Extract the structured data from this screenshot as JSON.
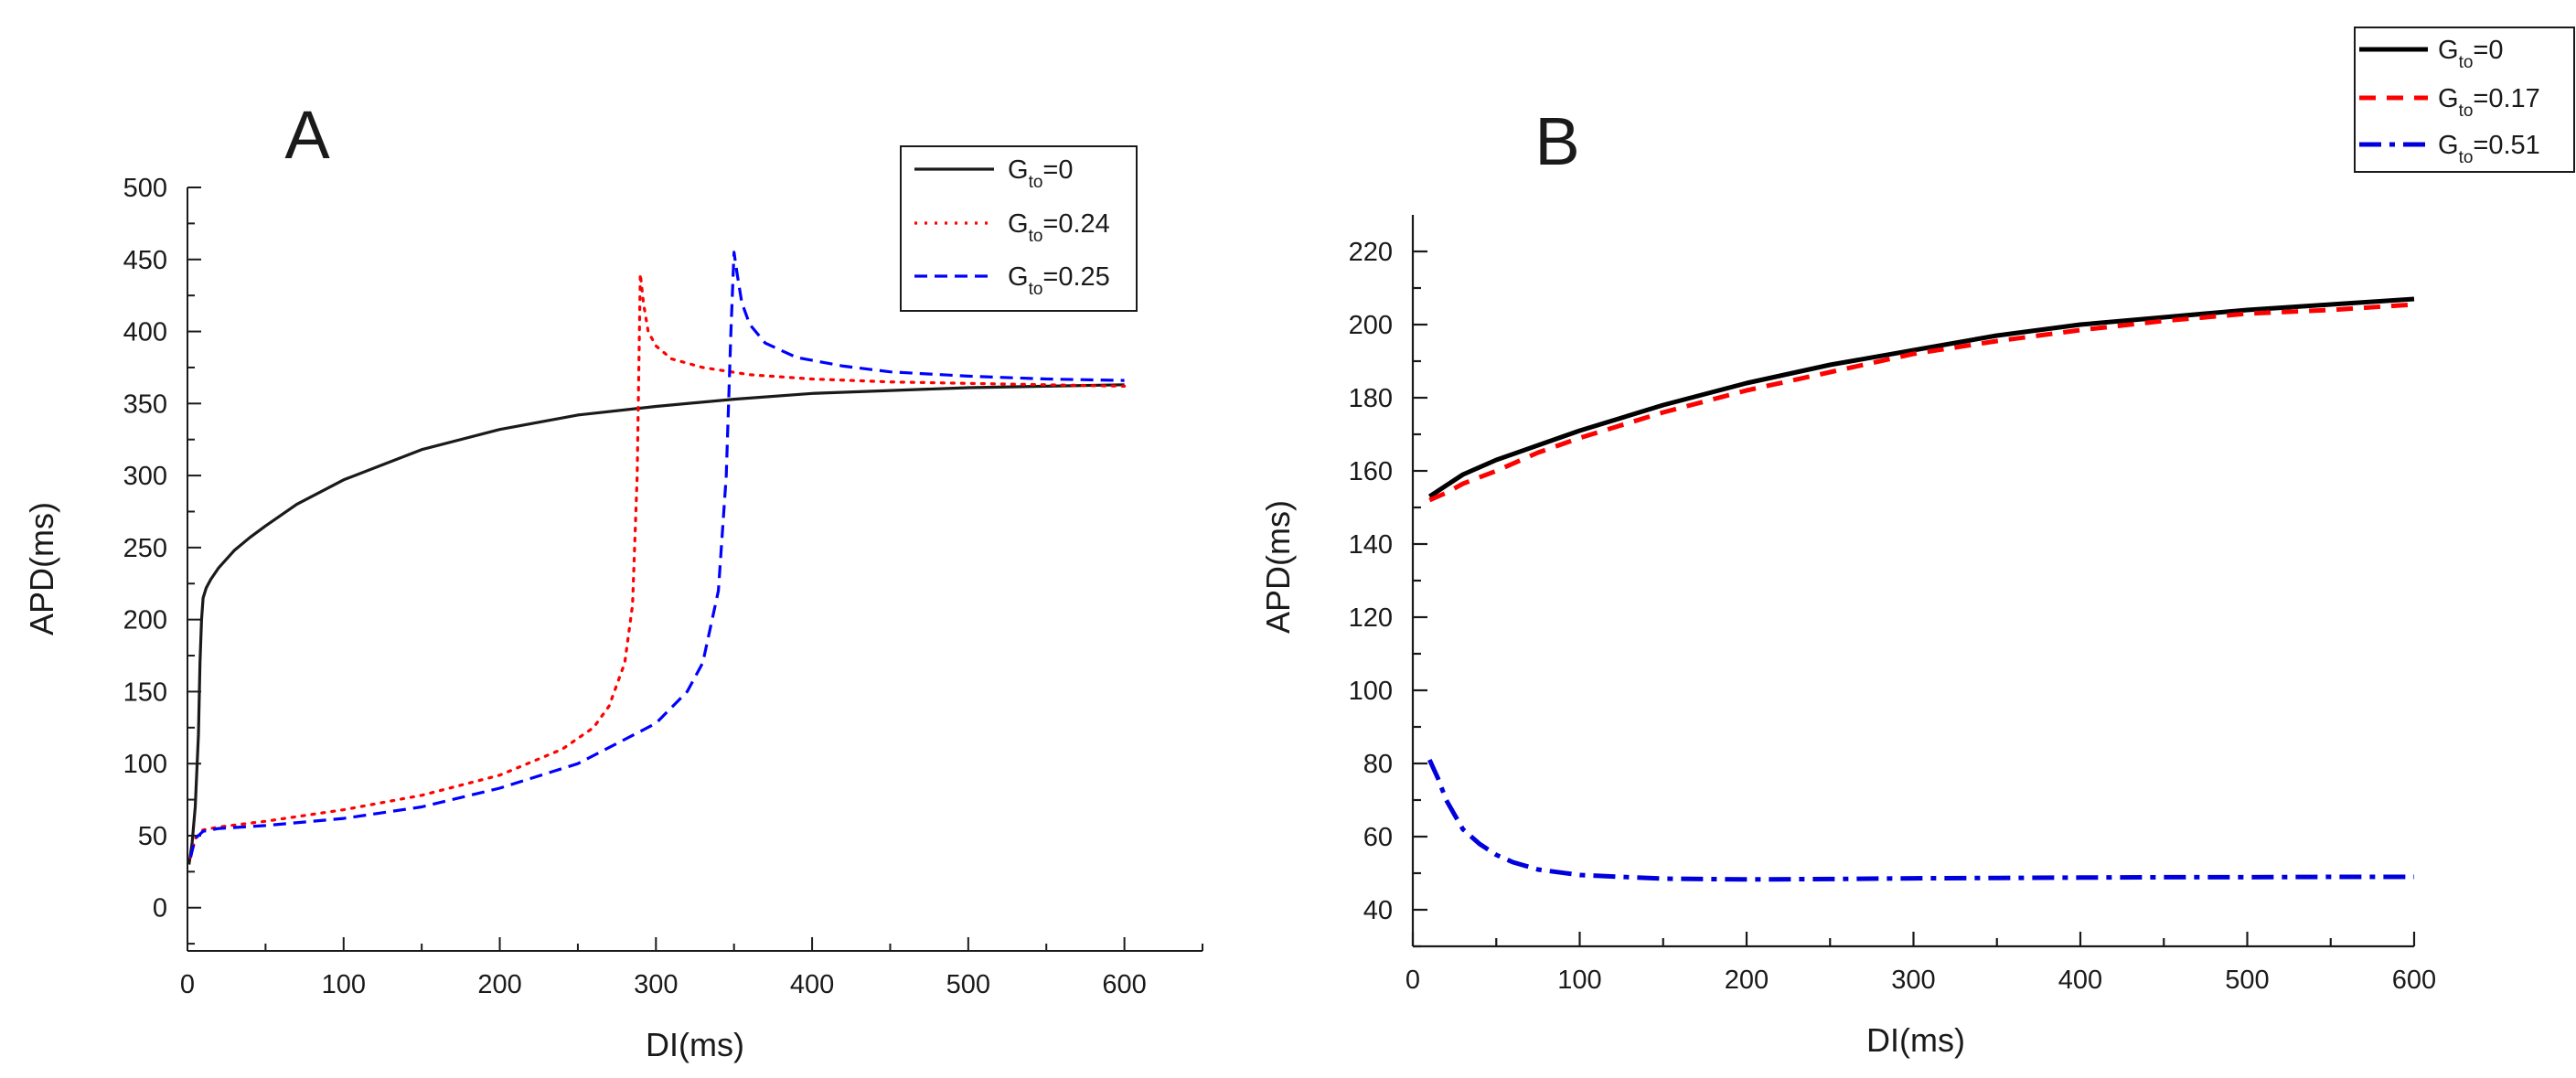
{
  "figure": {
    "panels": [
      "A",
      "B"
    ]
  },
  "chart_data": [
    {
      "panel_label": "A",
      "type": "line",
      "title": "",
      "xlabel": "DI(ms)",
      "ylabel": "APD(ms)",
      "xlim": [
        0,
        650
      ],
      "ylim": [
        -30,
        500
      ],
      "xticks": [
        0,
        100,
        200,
        300,
        400,
        500,
        600
      ],
      "yticks": [
        0,
        50,
        100,
        150,
        200,
        250,
        300,
        350,
        400,
        450,
        500
      ],
      "legend_position": "top-right",
      "series": [
        {
          "name": "G_to=0",
          "legend_main": "G",
          "legend_sub": "to",
          "legend_value": "=0",
          "color": "#1a1a1a",
          "style": "solid",
          "x": [
            1,
            3,
            5,
            7,
            8,
            9,
            10,
            12,
            15,
            20,
            30,
            40,
            50,
            70,
            100,
            150,
            200,
            250,
            300,
            350,
            400,
            450,
            500,
            550,
            600
          ],
          "y": [
            30,
            45,
            70,
            120,
            170,
            200,
            215,
            222,
            228,
            236,
            248,
            257,
            265,
            280,
            297,
            318,
            332,
            342,
            348,
            353,
            357,
            359,
            361,
            362,
            363
          ]
        },
        {
          "name": "G_to=0.24",
          "legend_main": "G",
          "legend_sub": "to",
          "legend_value": "=0.24",
          "color": "#ff0000",
          "style": "dotted",
          "x": [
            2,
            5,
            10,
            20,
            50,
            100,
            150,
            200,
            240,
            260,
            270,
            280,
            285,
            288,
            290,
            292,
            295,
            300,
            310,
            330,
            360,
            400,
            450,
            500,
            550,
            600
          ],
          "y": [
            35,
            48,
            54,
            56,
            60,
            68,
            78,
            92,
            110,
            125,
            140,
            170,
            210,
            300,
            440,
            420,
            400,
            390,
            381,
            375,
            370,
            367,
            365,
            364,
            363,
            362
          ]
        },
        {
          "name": "G_to=0.25",
          "legend_main": "G",
          "legend_sub": "to",
          "legend_value": "=0.25",
          "color": "#0000ff",
          "style": "dashed",
          "x": [
            2,
            5,
            10,
            20,
            50,
            100,
            150,
            200,
            250,
            300,
            320,
            330,
            340,
            345,
            348,
            350,
            352,
            355,
            360,
            370,
            390,
            420,
            450,
            500,
            550,
            600
          ],
          "y": [
            35,
            48,
            53,
            55,
            57,
            62,
            70,
            83,
            100,
            128,
            150,
            170,
            220,
            300,
            400,
            455,
            440,
            420,
            405,
            392,
            382,
            376,
            372,
            369,
            367,
            366
          ]
        }
      ]
    },
    {
      "panel_label": "B",
      "type": "line",
      "title": "",
      "xlabel": "DI(ms)",
      "ylabel": "APD(ms)",
      "xlim": [
        0,
        600
      ],
      "ylim": [
        30,
        230
      ],
      "xticks": [
        0,
        100,
        200,
        300,
        400,
        500,
        600
      ],
      "yticks": [
        40,
        60,
        80,
        100,
        120,
        140,
        160,
        180,
        200,
        220
      ],
      "legend_position": "top-right",
      "series": [
        {
          "name": "G_to=0",
          "legend_main": "G",
          "legend_sub": "to",
          "legend_value": "=0",
          "color": "#000000",
          "style": "solid",
          "x": [
            10,
            20,
            30,
            50,
            75,
            100,
            150,
            200,
            250,
            300,
            350,
            400,
            450,
            500,
            550,
            600
          ],
          "y": [
            153,
            156,
            159,
            163,
            167,
            171,
            178,
            184,
            189,
            193,
            197,
            200,
            202,
            204,
            205.5,
            207
          ]
        },
        {
          "name": "G_to=0.17",
          "legend_main": "G",
          "legend_sub": "to",
          "legend_value": "=0.17",
          "color": "#ff0000",
          "style": "dashed",
          "x": [
            10,
            20,
            30,
            50,
            75,
            100,
            150,
            200,
            250,
            300,
            350,
            400,
            450,
            500,
            550,
            600
          ],
          "y": [
            152,
            154,
            156.5,
            160,
            165,
            169,
            176,
            182,
            187,
            192,
            195.5,
            198.5,
            201,
            203,
            204,
            205.5
          ]
        },
        {
          "name": "G_to=0.51",
          "legend_main": "G",
          "legend_sub": "to",
          "legend_value": "=0.51",
          "color": "#0000dd",
          "style": "dashdot",
          "x": [
            10,
            15,
            20,
            25,
            30,
            40,
            50,
            60,
            75,
            100,
            150,
            200,
            250,
            300,
            350,
            400,
            450,
            500,
            550,
            600
          ],
          "y": [
            81,
            76,
            70,
            66,
            62,
            58,
            55,
            53,
            51,
            49.5,
            48.5,
            48.3,
            48.4,
            48.6,
            48.7,
            48.8,
            48.9,
            48.9,
            49,
            49
          ]
        }
      ]
    }
  ]
}
